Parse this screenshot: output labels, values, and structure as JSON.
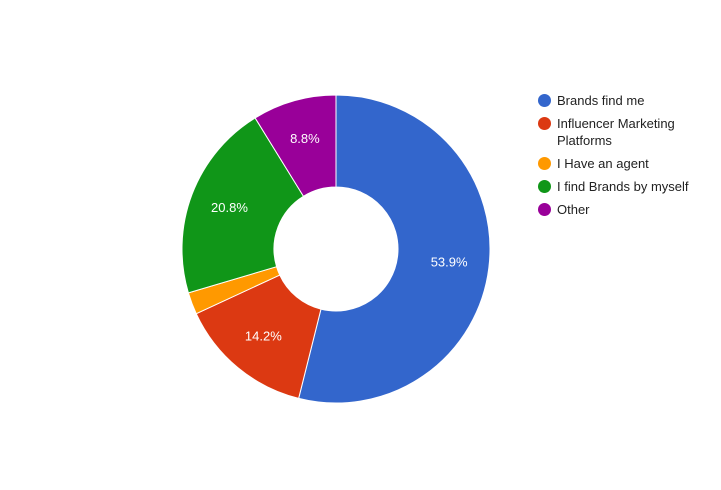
{
  "chart_data": {
    "type": "donut",
    "categories": [
      "Brands find me",
      "Influencer Marketing Platforms",
      "I Have an agent",
      "I find Brands by myself",
      "Other"
    ],
    "values": [
      53.9,
      14.2,
      2.3,
      20.8,
      8.8
    ],
    "value_labels": [
      "53.9%",
      "14.2%",
      null,
      "20.8%",
      "8.8%"
    ],
    "colors": [
      "#3366cc",
      "#dc3912",
      "#ff9900",
      "#109618",
      "#990099"
    ],
    "legend": "right"
  }
}
